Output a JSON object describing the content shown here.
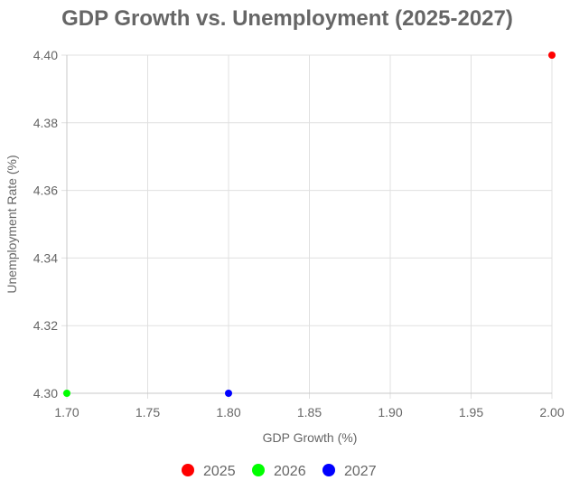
{
  "chart_data": {
    "type": "scatter",
    "title": "GDP Growth vs. Unemployment (2025-2027)",
    "xlabel": "GDP Growth (%)",
    "ylabel": "Unemployment Rate (%)",
    "xlim": [
      1.7,
      2.0
    ],
    "ylim": [
      4.3,
      4.4
    ],
    "x_ticks": [
      "1.70",
      "1.75",
      "1.80",
      "1.85",
      "1.90",
      "1.95",
      "2.00"
    ],
    "y_ticks": [
      "4.30",
      "4.32",
      "4.34",
      "4.36",
      "4.38",
      "4.40"
    ],
    "grid": true,
    "legend_position": "bottom",
    "series": [
      {
        "name": "2025",
        "color": "#ff0000",
        "points": [
          {
            "x": 2.0,
            "y": 4.4
          }
        ]
      },
      {
        "name": "2026",
        "color": "#00ff00",
        "points": [
          {
            "x": 1.7,
            "y": 4.3
          }
        ]
      },
      {
        "name": "2027",
        "color": "#0000ff",
        "points": [
          {
            "x": 1.8,
            "y": 4.3
          }
        ]
      }
    ]
  }
}
